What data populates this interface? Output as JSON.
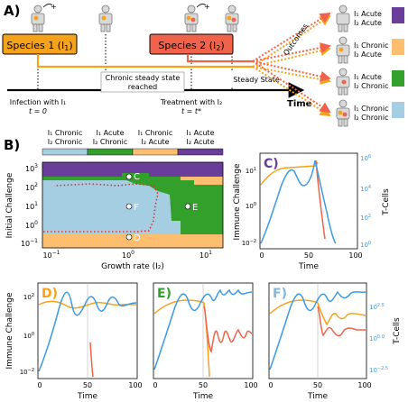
{
  "panel_labels": {
    "A": "A)",
    "B": "B)",
    "C": "C)",
    "D": "D)",
    "E": "E)",
    "F": "F)"
  },
  "colors": {
    "orange": "#f7a21b",
    "red": "#f0634a",
    "blue": "#3d9ae0",
    "purple": "#6a3d9a",
    "green": "#33a02c",
    "lightblue": "#a6cee3",
    "peach": "#fdbf6f",
    "black": "#000000"
  },
  "timeline": {
    "species1_label": "Species 1 (I",
    "species1_sub": "1",
    "species2_label": "Species 2 (I",
    "species2_sub": "2",
    "infection_line1": "Infection with I₁",
    "infection_line2": "t = 0",
    "chronic_line1": "Chronic steady state",
    "chronic_line2": "reached",
    "treatment_line1": "Treatment with I₂",
    "treatment_line2": "t = t*",
    "steady_state": "Steady State",
    "time_label": "Time",
    "outcomes_label": "Outcomes"
  },
  "outcomes": [
    {
      "line1": "I₁ Acute",
      "line2": "I₂ Acute",
      "color": "#6a3d9a"
    },
    {
      "line1": "I₁ Chronic",
      "line2": "I₂ Acute",
      "color": "#fdbf6f"
    },
    {
      "line1": "I₁ Acute",
      "line2": "I₂ Chronic",
      "color": "#33a02c"
    },
    {
      "line1": "I₁ Chronic",
      "line2": "I₂ Chronic",
      "color": "#a6cee3"
    }
  ],
  "phase_legend": [
    {
      "line1": "I₁ Chronic",
      "line2": "I₂ Chronic",
      "color": "#a6cee3"
    },
    {
      "line1": "I₁ Acute",
      "line2": "I₂ Chronic",
      "color": "#33a02c"
    },
    {
      "line1": "I₁ Chronic",
      "line2": "I₂ Acute",
      "color": "#fdbf6f"
    },
    {
      "line1": "I₁ Acute",
      "line2": "I₂ Acute",
      "color": "#6a3d9a"
    }
  ],
  "phase_plot": {
    "xlabel": "Growth rate (I₂)",
    "ylabel": "Initial Challenge",
    "x_ticks": [
      "10",
      "10",
      "10"
    ],
    "x_tick_exps": [
      "−1",
      "0",
      "1"
    ],
    "y_ticks": [
      "10",
      "10",
      "10",
      "10",
      "10"
    ],
    "y_tick_exps": [
      "3",
      "2",
      "1",
      "0",
      "−1"
    ],
    "x_range_log10": [
      -1.1,
      1.25
    ],
    "y_range_log10": [
      -1.2,
      3.1
    ],
    "points": [
      {
        "label": "C",
        "x": 1.0,
        "y": 500
      },
      {
        "label": "F",
        "x": 1.0,
        "y": 10
      },
      {
        "label": "E",
        "x": 6.0,
        "y": 10
      },
      {
        "label": "D",
        "x": 1.0,
        "y": 0.1
      }
    ]
  },
  "timeseries": {
    "xlabel": "Time",
    "ylabel_left": "Immune Challenge",
    "ylabel_right": "T-Cells",
    "x_ticks": [
      "0",
      "50",
      "100"
    ],
    "C_left_ticks_exp": [
      "1",
      "0",
      "−2"
    ],
    "C_right_ticks_exp": [
      "6",
      "4",
      "2",
      "0"
    ],
    "D_left_ticks_exp": [
      "2",
      "0",
      "−2"
    ],
    "F_right_ticks_exp": [
      "2.5",
      "0.0",
      "−2.5"
    ]
  }
}
